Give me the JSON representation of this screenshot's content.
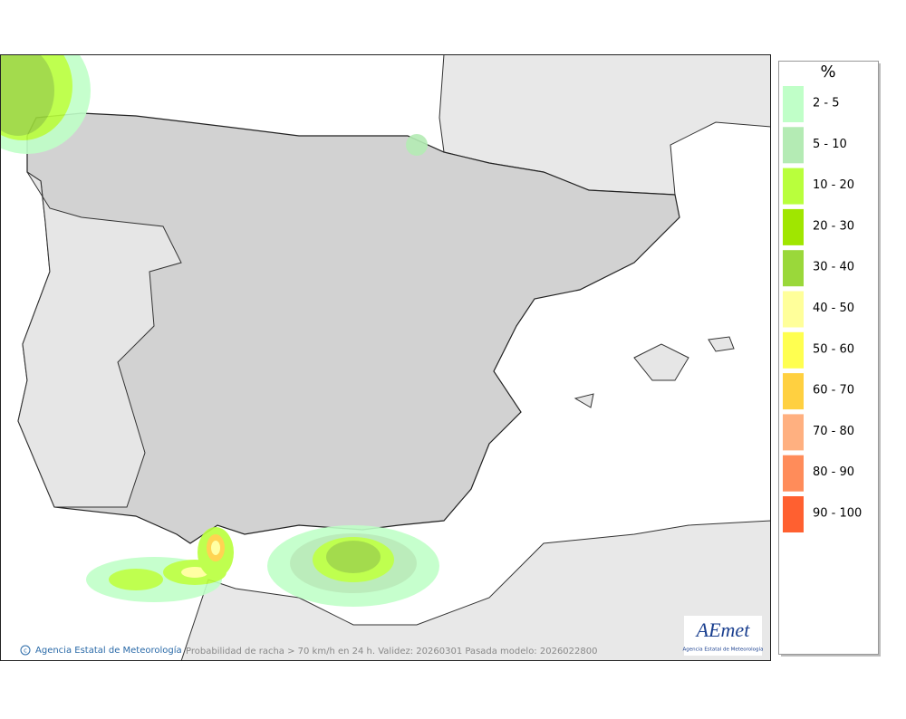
{
  "map": {
    "caption": "Probabilidad de racha > 70 km/h en 24 h. Validez: 20260301 Pasada modelo: 2026022800",
    "credit": "Agencia Estatal de Meteorología",
    "logo": {
      "name": "AEmet",
      "subtitle": "Agencia Estatal de Meteorología"
    }
  },
  "legend": {
    "unit": "%",
    "items": [
      {
        "label": "2 - 5",
        "color": "#c0ffc8"
      },
      {
        "label": "5 - 10",
        "color": "#b4ebb4"
      },
      {
        "label": "10 - 20",
        "color": "#b9ff3c"
      },
      {
        "label": "20 - 30",
        "color": "#a0e600"
      },
      {
        "label": "30 - 40",
        "color": "#9ad83a"
      },
      {
        "label": "40 - 50",
        "color": "#ffff9a"
      },
      {
        "label": "50 - 60",
        "color": "#ffff50"
      },
      {
        "label": "60 - 70",
        "color": "#ffd040"
      },
      {
        "label": "70 - 80",
        "color": "#ffb080"
      },
      {
        "label": "80 - 90",
        "color": "#ff8c5a"
      },
      {
        "label": "90 - 100",
        "color": "#ff6030"
      }
    ]
  }
}
